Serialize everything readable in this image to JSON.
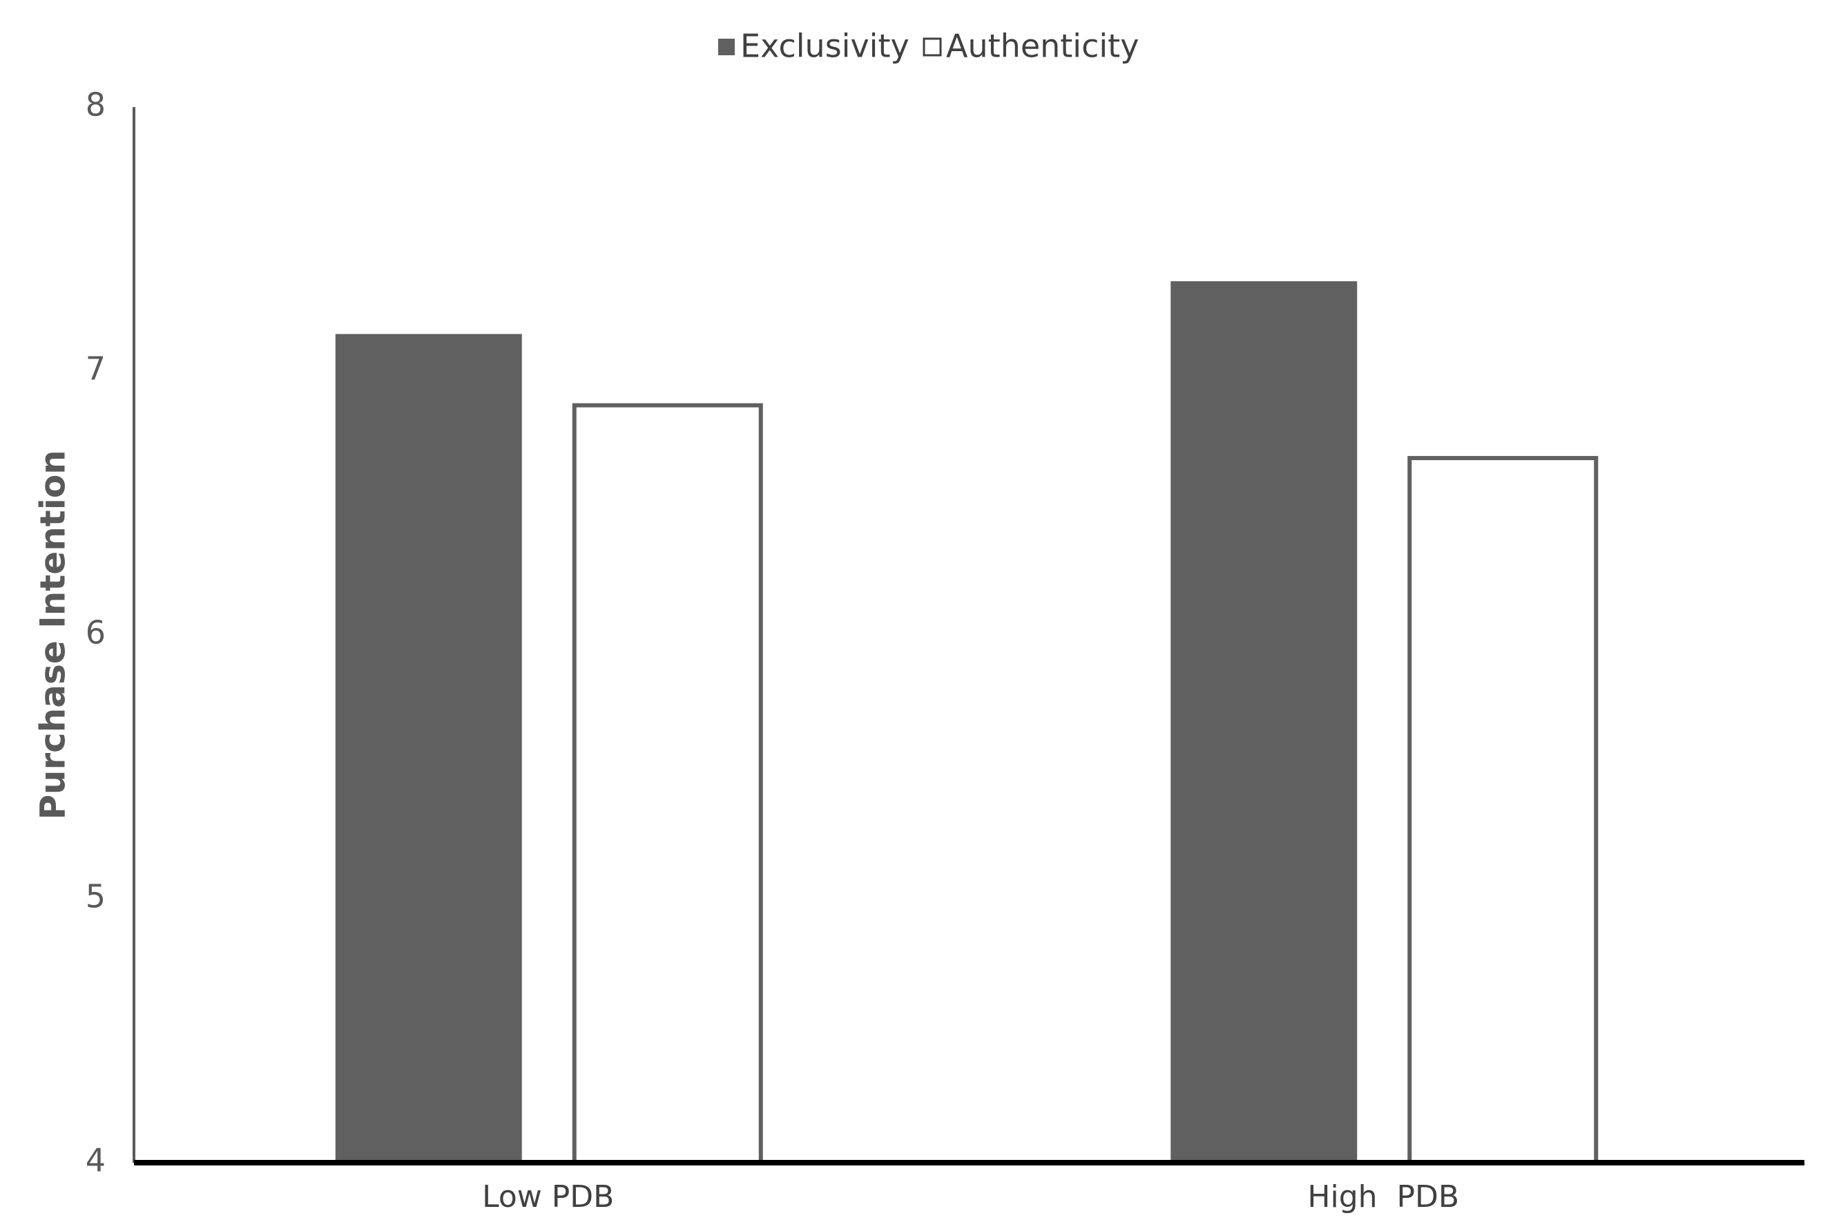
{
  "chart_data": {
    "type": "bar",
    "y_label": "Purchase Intention",
    "categories": [
      "Low PDB",
      "High  PDB"
    ],
    "series": [
      {
        "name": "Exclusivity",
        "color": "#606060",
        "values": [
          7.14,
          7.34
        ]
      },
      {
        "name": "Authenticity",
        "color": "#ffffff",
        "values": [
          6.87,
          6.67
        ]
      }
    ],
    "ylim": [
      4,
      8
    ],
    "yticks": [
      4,
      5,
      6,
      7,
      8
    ],
    "grid": false,
    "legend": "top"
  }
}
